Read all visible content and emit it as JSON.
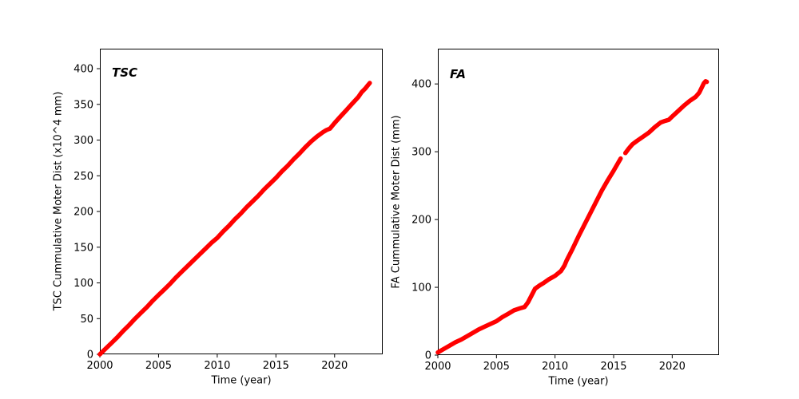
{
  "figure": {
    "background": "#ffffff",
    "accent_color": "#ff0000",
    "axis_color": "#000000"
  },
  "chart_data": [
    {
      "type": "line",
      "title": "TSC",
      "xlabel": "Time (year)",
      "ylabel": "TSC Cummulative Moter Dist (x10^4 mm)",
      "xlim": [
        2000,
        2024.1
      ],
      "ylim": [
        0,
        428
      ],
      "xticks": [
        2000,
        2005,
        2010,
        2015,
        2020
      ],
      "yticks": [
        0,
        50,
        100,
        150,
        200,
        250,
        300,
        350,
        400
      ],
      "grid": false,
      "legend": "none",
      "color": "#ff0000",
      "series": [
        {
          "name": "TSC cumulative motor distance",
          "segments": [
            [
              [
                2000.0,
                0
              ],
              [
                2000.5,
                8
              ],
              [
                2001.0,
                16
              ],
              [
                2001.5,
                24
              ],
              [
                2002.0,
                33
              ],
              [
                2002.5,
                41
              ],
              [
                2003.0,
                50
              ],
              [
                2003.5,
                58
              ],
              [
                2004.0,
                66
              ],
              [
                2004.5,
                75
              ],
              [
                2005.0,
                83
              ],
              [
                2005.5,
                91
              ],
              [
                2006.0,
                99
              ],
              [
                2006.5,
                108
              ],
              [
                2007.0,
                116
              ],
              [
                2007.5,
                124
              ],
              [
                2008.0,
                132
              ],
              [
                2008.5,
                140
              ],
              [
                2009.0,
                148
              ],
              [
                2009.5,
                156
              ],
              [
                2010.0,
                163
              ],
              [
                2010.5,
                172
              ],
              [
                2011.0,
                180
              ],
              [
                2011.5,
                189
              ],
              [
                2012.0,
                197
              ],
              [
                2012.5,
                206
              ],
              [
                2013.0,
                214
              ],
              [
                2013.5,
                222
              ],
              [
                2014.0,
                231
              ],
              [
                2014.5,
                239
              ],
              [
                2015.0,
                247
              ],
              [
                2015.5,
                256
              ],
              [
                2016.0,
                264
              ],
              [
                2016.5,
                273
              ],
              [
                2017.0,
                281
              ],
              [
                2017.5,
                290
              ],
              [
                2018.0,
                298
              ],
              [
                2018.5,
                305
              ],
              [
                2019.0,
                311
              ],
              [
                2019.3,
                314
              ],
              [
                2019.6,
                316
              ],
              [
                2020.0,
                324
              ],
              [
                2020.5,
                333
              ],
              [
                2021.0,
                342
              ],
              [
                2021.5,
                351
              ],
              [
                2022.0,
                360
              ],
              [
                2022.3,
                367
              ],
              [
                2022.6,
                372
              ],
              [
                2022.85,
                377
              ],
              [
                2023.0,
                380
              ]
            ]
          ]
        }
      ]
    },
    {
      "type": "line",
      "title": "FA",
      "xlabel": "Time (year)",
      "ylabel": "FA Cummulative Moter Dist (mm)",
      "xlim": [
        2000,
        2024
      ],
      "ylim": [
        0,
        452
      ],
      "xticks": [
        2000,
        2005,
        2010,
        2015,
        2020
      ],
      "yticks": [
        0,
        100,
        200,
        300,
        400
      ],
      "grid": false,
      "legend": "none",
      "color": "#ff0000",
      "series": [
        {
          "name": "FA cumulative motor distance",
          "segments": [
            [
              [
                2000.0,
                4
              ],
              [
                2000.5,
                9
              ],
              [
                2001.0,
                14
              ],
              [
                2001.5,
                19
              ],
              [
                2002.0,
                23
              ],
              [
                2002.5,
                28
              ],
              [
                2003.0,
                33
              ],
              [
                2003.5,
                38
              ],
              [
                2004.0,
                42
              ],
              [
                2004.5,
                46
              ],
              [
                2005.0,
                50
              ],
              [
                2005.5,
                56
              ],
              [
                2006.0,
                61
              ],
              [
                2006.5,
                66
              ],
              [
                2007.0,
                69
              ],
              [
                2007.4,
                71
              ],
              [
                2007.7,
                78
              ],
              [
                2008.0,
                88
              ],
              [
                2008.3,
                98
              ],
              [
                2008.7,
                103
              ],
              [
                2009.0,
                106
              ],
              [
                2009.5,
                112
              ],
              [
                2010.0,
                117
              ],
              [
                2010.5,
                124
              ],
              [
                2010.8,
                132
              ],
              [
                2011.0,
                140
              ],
              [
                2011.5,
                157
              ],
              [
                2012.0,
                175
              ],
              [
                2012.5,
                192
              ],
              [
                2013.0,
                209
              ],
              [
                2013.5,
                226
              ],
              [
                2014.0,
                243
              ],
              [
                2014.5,
                258
              ],
              [
                2015.0,
                272
              ],
              [
                2015.3,
                281
              ],
              [
                2015.6,
                290
              ]
            ],
            [
              [
                2016.0,
                298
              ],
              [
                2016.3,
                305
              ],
              [
                2016.6,
                311
              ],
              [
                2017.0,
                316
              ],
              [
                2017.5,
                322
              ],
              [
                2018.0,
                328
              ],
              [
                2018.5,
                336
              ],
              [
                2019.0,
                343
              ],
              [
                2019.3,
                345
              ],
              [
                2019.7,
                347
              ],
              [
                2020.0,
                352
              ],
              [
                2020.5,
                360
              ],
              [
                2021.0,
                368
              ],
              [
                2021.5,
                375
              ],
              [
                2022.0,
                381
              ],
              [
                2022.3,
                387
              ],
              [
                2022.5,
                394
              ],
              [
                2022.7,
                401
              ],
              [
                2022.85,
                404
              ],
              [
                2022.95,
                403
              ]
            ]
          ]
        }
      ]
    }
  ]
}
